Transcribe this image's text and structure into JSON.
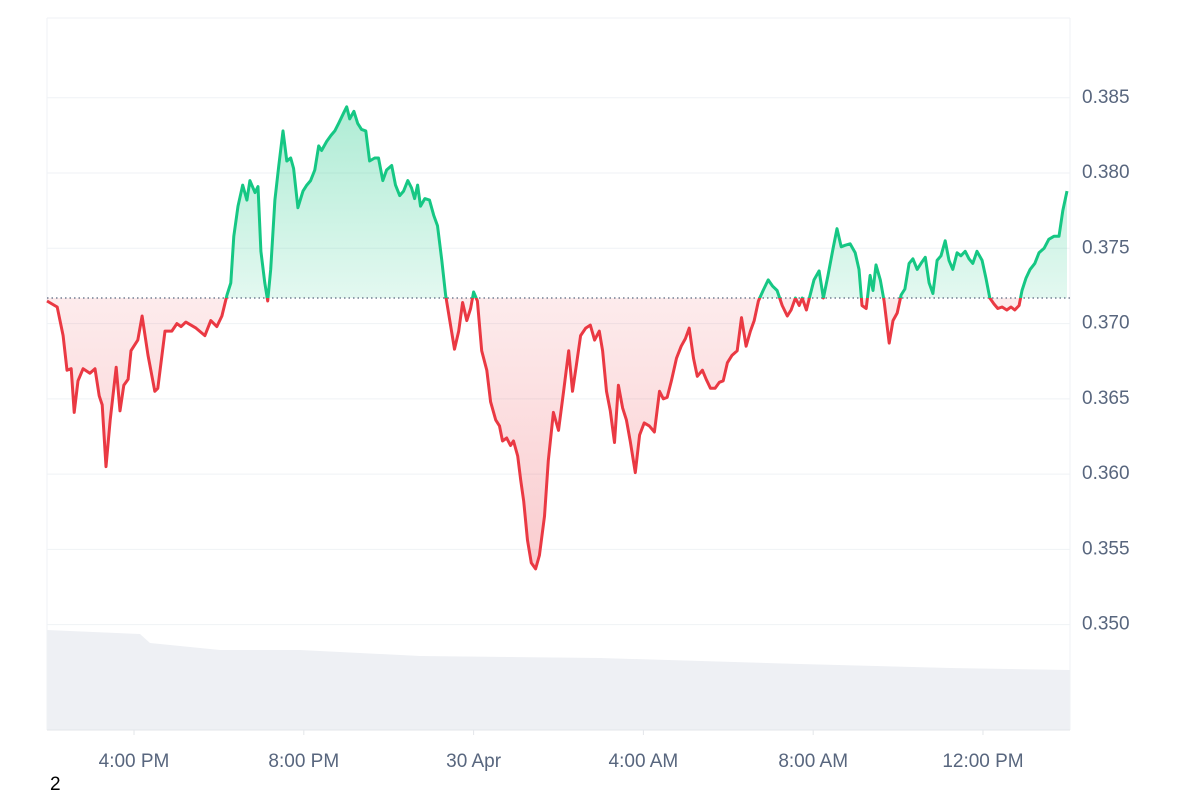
{
  "chart_data": {
    "type": "line",
    "x": [
      13.95,
      14.19,
      14.33,
      14.42,
      14.52,
      14.59,
      14.68,
      14.8,
      14.96,
      15.08,
      15.18,
      15.25,
      15.34,
      15.44,
      15.58,
      15.67,
      15.76,
      15.86,
      15.93,
      16.09,
      16.19,
      16.33,
      16.49,
      16.56,
      16.73,
      16.89,
      17.01,
      17.11,
      17.22,
      17.34,
      17.46,
      17.67,
      17.81,
      17.95,
      18.07,
      18.19,
      18.28,
      18.35,
      18.45,
      18.56,
      18.66,
      18.73,
      18.85,
      18.92,
      18.99,
      19.08,
      19.15,
      19.22,
      19.32,
      19.41,
      19.51,
      19.6,
      19.69,
      19.76,
      19.86,
      19.98,
      20.07,
      20.16,
      20.26,
      20.35,
      20.42,
      20.54,
      20.64,
      20.73,
      20.82,
      20.94,
      21.01,
      21.08,
      21.18,
      21.27,
      21.36,
      21.46,
      21.55,
      21.67,
      21.76,
      21.86,
      21.95,
      22.07,
      22.16,
      22.26,
      22.35,
      22.45,
      22.54,
      22.61,
      22.68,
      22.75,
      22.85,
      22.96,
      23.06,
      23.15,
      23.25,
      23.34,
      23.44,
      23.55,
      23.65,
      23.74,
      23.84,
      23.93,
      24.0,
      24.09,
      24.19,
      24.31,
      24.4,
      24.52,
      24.61,
      24.68,
      24.78,
      24.87,
      24.94,
      25.04,
      25.11,
      25.18,
      25.27,
      25.36,
      25.46,
      25.55,
      25.67,
      25.76,
      25.88,
      26.0,
      26.12,
      26.24,
      26.33,
      26.42,
      26.52,
      26.64,
      26.75,
      26.85,
      26.96,
      27.04,
      27.13,
      27.22,
      27.32,
      27.41,
      27.51,
      27.6,
      27.69,
      27.81,
      27.91,
      28.02,
      28.14,
      28.26,
      28.38,
      28.47,
      28.56,
      28.66,
      28.78,
      28.89,
      28.99,
      29.08,
      29.18,
      29.27,
      29.39,
      29.48,
      29.58,
      29.69,
      29.79,
      29.88,
      29.98,
      30.09,
      30.21,
      30.31,
      30.42,
      30.52,
      30.61,
      30.71,
      30.82,
      30.94,
      31.04,
      31.15,
      31.27,
      31.39,
      31.48,
      31.58,
      31.67,
      31.74,
      31.84,
      31.91,
      32.02,
      32.14,
      32.24,
      32.35,
      32.47,
      32.56,
      32.66,
      32.75,
      32.87,
      32.99,
      33.08,
      33.15,
      33.25,
      33.34,
      33.41,
      33.48,
      33.58,
      33.67,
      33.79,
      33.88,
      33.98,
      34.07,
      34.16,
      34.26,
      34.35,
      34.45,
      34.54,
      34.64,
      34.73,
      34.82,
      34.92,
      35.01,
      35.11,
      35.2,
      35.29,
      35.39,
      35.48,
      35.58,
      35.67,
      35.76,
      35.86,
      35.98,
      36.07,
      36.16,
      36.26,
      36.35,
      36.45,
      36.56,
      36.66,
      36.75,
      36.85,
      36.92,
      37.01,
      37.11,
      37.22,
      37.32,
      37.44,
      37.55,
      37.67,
      37.79,
      37.88,
      37.98
    ],
    "values": [
      0.3715,
      0.3711,
      0.3692,
      0.3669,
      0.367,
      0.3641,
      0.3662,
      0.367,
      0.3667,
      0.367,
      0.3652,
      0.3646,
      0.3605,
      0.3636,
      0.3671,
      0.3642,
      0.3659,
      0.3663,
      0.3682,
      0.3689,
      0.3705,
      0.3679,
      0.3655,
      0.3657,
      0.3695,
      0.3695,
      0.37,
      0.3698,
      0.3701,
      0.3699,
      0.3697,
      0.3692,
      0.3702,
      0.3698,
      0.3705,
      0.3719,
      0.3727,
      0.3758,
      0.3778,
      0.3792,
      0.3782,
      0.3795,
      0.3787,
      0.3791,
      0.3748,
      0.3727,
      0.3715,
      0.3736,
      0.3782,
      0.3805,
      0.3828,
      0.3808,
      0.381,
      0.3803,
      0.3777,
      0.3788,
      0.3792,
      0.3795,
      0.3802,
      0.3818,
      0.3815,
      0.3821,
      0.3825,
      0.3828,
      0.3833,
      0.384,
      0.3844,
      0.3836,
      0.3841,
      0.3833,
      0.3829,
      0.3828,
      0.3808,
      0.381,
      0.381,
      0.3795,
      0.3802,
      0.3805,
      0.3792,
      0.3785,
      0.3788,
      0.3795,
      0.379,
      0.3783,
      0.3792,
      0.3778,
      0.3783,
      0.3782,
      0.3772,
      0.3765,
      0.3742,
      0.3719,
      0.3702,
      0.3683,
      0.3695,
      0.3714,
      0.3702,
      0.371,
      0.3721,
      0.3715,
      0.3682,
      0.3669,
      0.3648,
      0.3636,
      0.3632,
      0.3622,
      0.3624,
      0.3619,
      0.3622,
      0.3612,
      0.3596,
      0.3582,
      0.3556,
      0.3541,
      0.3537,
      0.3546,
      0.3572,
      0.3609,
      0.3641,
      0.3629,
      0.3655,
      0.3682,
      0.3655,
      0.3672,
      0.3692,
      0.3697,
      0.3699,
      0.3689,
      0.3695,
      0.3682,
      0.3655,
      0.3642,
      0.3621,
      0.3659,
      0.3644,
      0.3636,
      0.3622,
      0.3601,
      0.3626,
      0.3634,
      0.3632,
      0.3628,
      0.3655,
      0.365,
      0.3651,
      0.3662,
      0.3677,
      0.3685,
      0.369,
      0.3697,
      0.3677,
      0.3665,
      0.3669,
      0.3663,
      0.3657,
      0.3657,
      0.3661,
      0.3662,
      0.3674,
      0.3679,
      0.3682,
      0.3704,
      0.3685,
      0.3695,
      0.3702,
      0.3715,
      0.3722,
      0.3729,
      0.3725,
      0.3722,
      0.3712,
      0.3705,
      0.3709,
      0.3717,
      0.3712,
      0.3717,
      0.3709,
      0.3717,
      0.3729,
      0.3735,
      0.3717,
      0.3732,
      0.375,
      0.3763,
      0.3751,
      0.3752,
      0.3753,
      0.3747,
      0.3736,
      0.3712,
      0.371,
      0.3732,
      0.3722,
      0.3739,
      0.3729,
      0.3715,
      0.3687,
      0.3702,
      0.3707,
      0.3719,
      0.3723,
      0.374,
      0.3743,
      0.3736,
      0.374,
      0.3744,
      0.3727,
      0.372,
      0.3742,
      0.3745,
      0.3755,
      0.3742,
      0.3736,
      0.3747,
      0.3745,
      0.3748,
      0.3743,
      0.374,
      0.3748,
      0.3742,
      0.373,
      0.3717,
      0.3713,
      0.371,
      0.3711,
      0.3709,
      0.3711,
      0.3709,
      0.3712,
      0.3722,
      0.373,
      0.3736,
      0.374,
      0.3747,
      0.375,
      0.3756,
      0.3758,
      0.3758,
      0.3775,
      0.3788
    ],
    "baseline": 0.3717,
    "color_above": "#16c784",
    "color_below": "#ea3943",
    "xlim": [
      13.95,
      38.05
    ],
    "xticks": [
      {
        "value": 16,
        "label": "4:00 PM"
      },
      {
        "value": 20,
        "label": "8:00 PM"
      },
      {
        "value": 24,
        "label": "30 Apr"
      },
      {
        "value": 28,
        "label": "4:00 AM"
      },
      {
        "value": 32,
        "label": "8:00 AM"
      },
      {
        "value": 36,
        "label": "12:00 PM"
      }
    ],
    "ylim": [
      0.343,
      0.3903
    ],
    "yticks": [
      {
        "value": 0.35,
        "label": "0.350"
      },
      0.355,
      {
        "value": 0.36,
        "label": "0.360"
      },
      0.365,
      {
        "value": 0.37,
        "label": "0.370"
      },
      0.375,
      {
        "value": 0.38,
        "label": "0.380"
      },
      0.385
    ],
    "grid": true,
    "footnote": "2"
  }
}
